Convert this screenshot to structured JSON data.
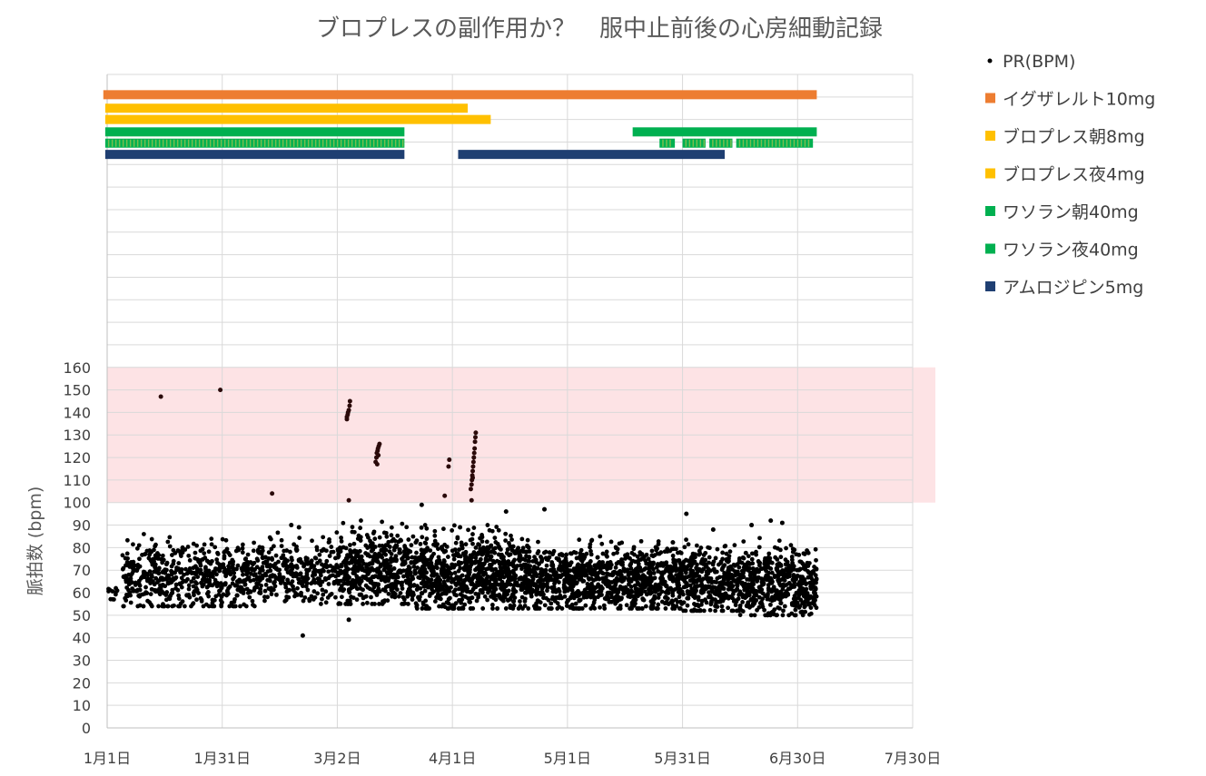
{
  "chart_data": {
    "type": "scatter",
    "title": "ブロプレスの副作用か？　服中止前後の心房細動記録",
    "ylabel": "脈拍数 (bpm)",
    "xlabel": "",
    "x_ticks": [
      "1月1日",
      "1月31日",
      "3月2日",
      "4月1日",
      "5月1日",
      "5月31日",
      "6月30日",
      "7月30日"
    ],
    "y_ticks": [
      "0",
      "10",
      "20",
      "30",
      "40",
      "50",
      "60",
      "70",
      "80",
      "90",
      "100",
      "110",
      "120",
      "130",
      "140",
      "150",
      "160"
    ],
    "xlim_days": [
      0,
      210
    ],
    "ylim": [
      0,
      160
    ],
    "extended_grid_max": 290,
    "grid": true,
    "highlight_band": {
      "from": 100,
      "to": 160,
      "color": "#fde3e5"
    },
    "legend_position": "right",
    "legend": [
      {
        "label": "PR(BPM)",
        "marker": "dot",
        "color": "#000000"
      },
      {
        "label": "イグザレルト10mg",
        "marker": "square",
        "color": "#ed7d31"
      },
      {
        "label": "ブロプレス朝8mg",
        "marker": "square",
        "color": "#ffc000"
      },
      {
        "label": "ブロプレス夜4mg",
        "marker": "square",
        "color": "#ffc000"
      },
      {
        "label": "ワソラン朝40mg",
        "marker": "square",
        "color": "#00b050"
      },
      {
        "label": "ワソラン夜40mg",
        "marker": "square",
        "color": "#00b050"
      },
      {
        "label": "アムロジピン5mg",
        "marker": "square",
        "color": "#1f3f72"
      }
    ],
    "medication_bars": [
      {
        "name": "イグザレルト10mg",
        "color": "#ed7d31",
        "level": 281,
        "segments": [
          [
            -1,
            185
          ]
        ]
      },
      {
        "name": "ブロプレス朝8mg",
        "color": "#ffc000",
        "level": 275,
        "segments": [
          [
            -0.5,
            94
          ]
        ]
      },
      {
        "name": "ブロプレス夜4mg",
        "color": "#ffc000",
        "level": 270,
        "segments": [
          [
            -0.5,
            100
          ]
        ]
      },
      {
        "name": "ワソラン朝40mg",
        "color": "#00b050",
        "level": 264.5,
        "segments": [
          [
            -0.5,
            77.5
          ],
          [
            137,
            185
          ]
        ]
      },
      {
        "name": "ワソラン夜40mg",
        "color": "#00b050",
        "level": 259.5,
        "segments": [
          [
            -0.5,
            77.5
          ],
          [
            144,
            148
          ],
          [
            150,
            156
          ],
          [
            157,
            163
          ],
          [
            164,
            184
          ]
        ],
        "striped": true
      },
      {
        "name": "アムロジピン5mg",
        "color": "#1f3f72",
        "level": 254.5,
        "segments": [
          [
            -0.5,
            77.5
          ],
          [
            91.5,
            161
          ]
        ]
      }
    ],
    "series": [
      {
        "name": "PR(BPM)",
        "color": "#000000",
        "outliers": [
          [
            14,
            147
          ],
          [
            29.5,
            150
          ],
          [
            43,
            104
          ],
          [
            51,
            41
          ],
          [
            63,
            101
          ],
          [
            63,
            48
          ],
          [
            62.5,
            137
          ],
          [
            62.5,
            138
          ],
          [
            62.7,
            139
          ],
          [
            62.8,
            140
          ],
          [
            63,
            141
          ],
          [
            63.2,
            143
          ],
          [
            63.3,
            145
          ],
          [
            70,
            118
          ],
          [
            70.2,
            120
          ],
          [
            70.3,
            122
          ],
          [
            70.5,
            123
          ],
          [
            70.6,
            124
          ],
          [
            70.8,
            125
          ],
          [
            71,
            126
          ],
          [
            70.4,
            117
          ],
          [
            70.7,
            121
          ],
          [
            82,
            99
          ],
          [
            88,
            103
          ],
          [
            89,
            116
          ],
          [
            89.2,
            119
          ],
          [
            92,
            89
          ],
          [
            95,
            101
          ],
          [
            95,
            108
          ],
          [
            95.1,
            110
          ],
          [
            95.2,
            112
          ],
          [
            95.3,
            114
          ],
          [
            95.4,
            116
          ],
          [
            95.5,
            118
          ],
          [
            95.6,
            120
          ],
          [
            95.7,
            122
          ],
          [
            95.8,
            124
          ],
          [
            95.9,
            127
          ],
          [
            96,
            129
          ],
          [
            96.1,
            131
          ],
          [
            94.8,
            106
          ],
          [
            95.3,
            111
          ],
          [
            104,
            96
          ],
          [
            114,
            97
          ],
          [
            151,
            95
          ],
          [
            158,
            88
          ],
          [
            168,
            90
          ],
          [
            173,
            92
          ],
          [
            176,
            91
          ],
          [
            48,
            90
          ],
          [
            50,
            89
          ]
        ],
        "daily_clusters": [
          {
            "day_from": 0,
            "day_to": 3,
            "low": 57,
            "high": 68,
            "count": 2
          },
          {
            "day_from": 4,
            "day_to": 40,
            "low": 54,
            "high": 86,
            "count": 8
          },
          {
            "day_from": 40,
            "day_to": 60,
            "low": 55,
            "high": 88,
            "count": 7
          },
          {
            "day_from": 60,
            "day_to": 80,
            "low": 55,
            "high": 92,
            "count": 12
          },
          {
            "day_from": 80,
            "day_to": 110,
            "low": 53,
            "high": 90,
            "count": 14
          },
          {
            "day_from": 110,
            "day_to": 150,
            "low": 53,
            "high": 85,
            "count": 12
          },
          {
            "day_from": 150,
            "day_to": 165,
            "low": 52,
            "high": 84,
            "count": 12
          },
          {
            "day_from": 165,
            "day_to": 185,
            "low": 50,
            "high": 85,
            "count": 12
          }
        ]
      }
    ]
  }
}
